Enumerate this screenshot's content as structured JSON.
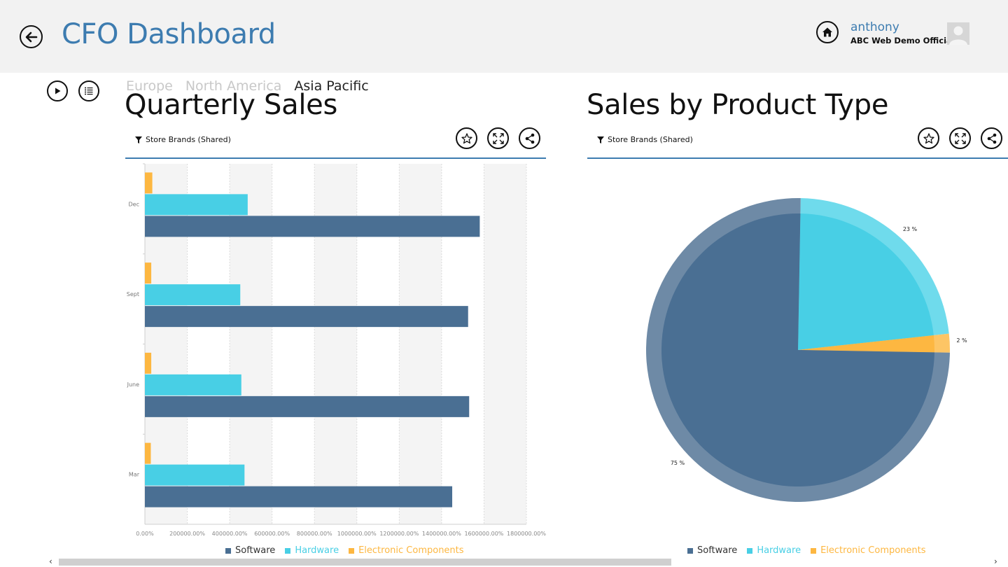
{
  "header": {
    "title": "CFO Dashboard",
    "user_name": "anthony",
    "user_org": "ABC Web Demo Official"
  },
  "regions": [
    "Europe",
    "North America",
    "Asia Pacific"
  ],
  "active_region": "Asia Pacific",
  "panels": {
    "quarterly": {
      "title": "Quarterly Sales",
      "filter": "Store Brands (Shared)"
    },
    "product": {
      "title": "Sales by Product Type",
      "filter": "Store Brands (Shared)"
    }
  },
  "legend": [
    {
      "label": "Software",
      "color": "#4a6f93"
    },
    {
      "label": "Hardware",
      "color": "#48cfe5"
    },
    {
      "label": "Electronic Components",
      "color": "#fdb741"
    }
  ],
  "chart_data": [
    {
      "type": "bar",
      "orientation": "horizontal",
      "categories": [
        "Dec",
        "Sept",
        "June",
        "Mar"
      ],
      "series": [
        {
          "name": "Software",
          "values": [
            1580000,
            1525000,
            1530000,
            1450000
          ]
        },
        {
          "name": "Hardware",
          "values": [
            485000,
            450000,
            455000,
            470000
          ]
        },
        {
          "name": "Electronic Components",
          "values": [
            35000,
            30000,
            30000,
            28000
          ]
        }
      ],
      "x_ticks": [
        "0.00%",
        "200000.00%",
        "400000.00%",
        "600000.00%",
        "800000.00%",
        "1000000.00%",
        "1200000.00%",
        "1400000.00%",
        "1600000.00%",
        "1800000.00%"
      ],
      "xlim": [
        0,
        1800000
      ]
    },
    {
      "type": "pie",
      "slices": [
        {
          "name": "Software",
          "value": 75,
          "label": "75 %"
        },
        {
          "name": "Hardware",
          "value": 23,
          "label": "23 %"
        },
        {
          "name": "Electronic Components",
          "value": 2,
          "label": "2 %"
        }
      ]
    }
  ]
}
